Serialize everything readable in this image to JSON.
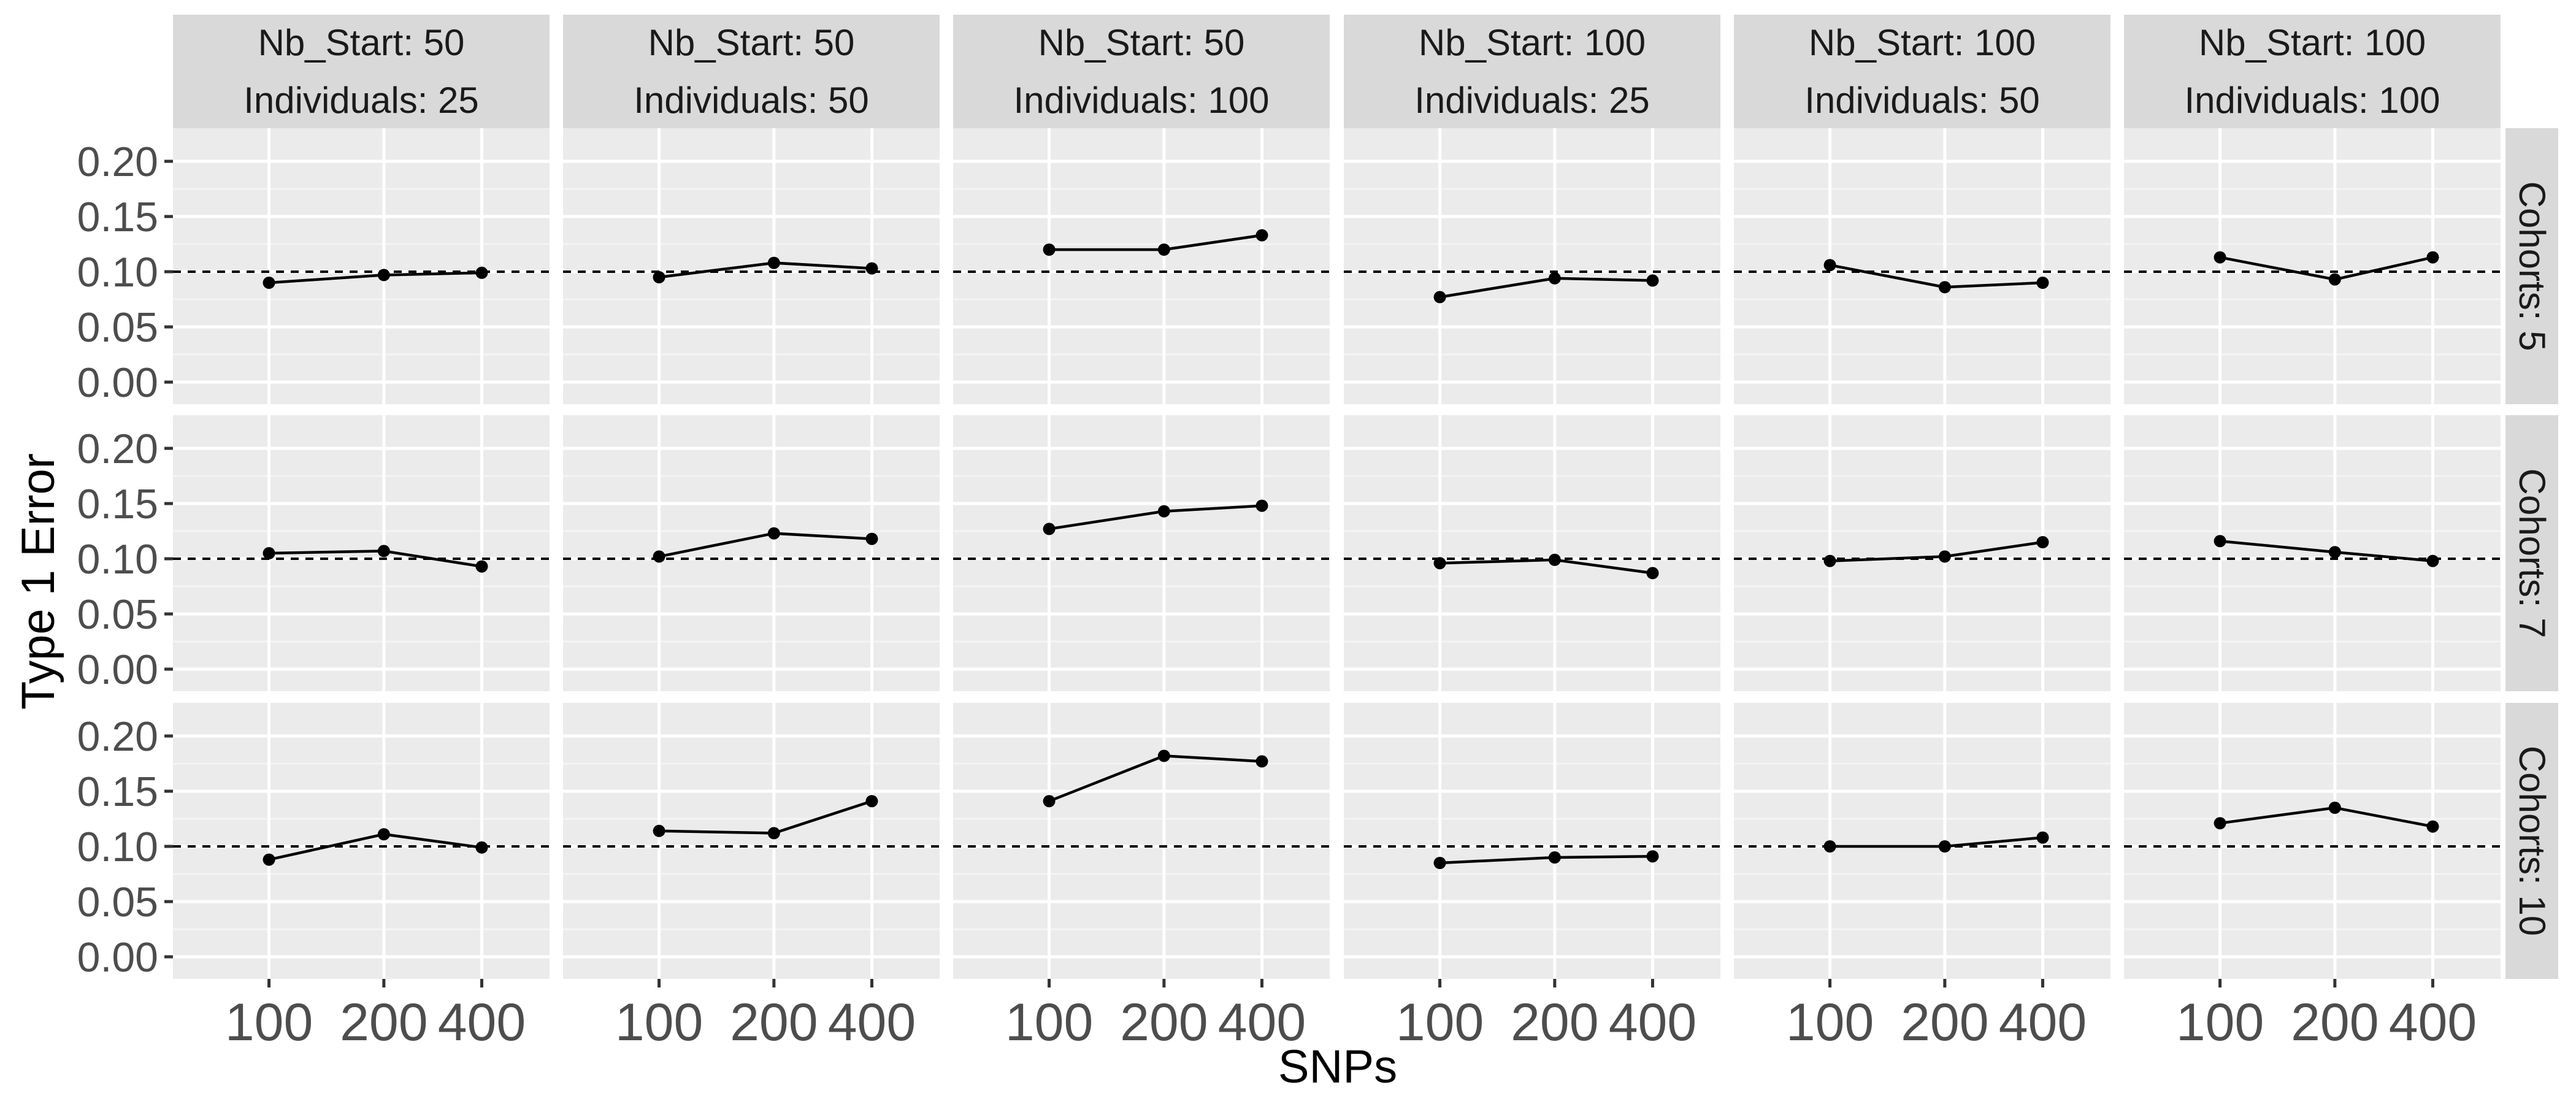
{
  "chart_data": {
    "type": "line",
    "facet_grid": true,
    "xlabel": "SNPs",
    "ylabel": "Type 1 Error",
    "x": [
      100,
      200,
      400
    ],
    "x_tick_labels": [
      "100",
      "200",
      "400"
    ],
    "ylim": [
      -0.02,
      0.23
    ],
    "y_ticks": [
      0.0,
      0.05,
      0.1,
      0.15,
      0.2
    ],
    "y_tick_labels": [
      "0.00",
      "0.05",
      "0.10",
      "0.15",
      "0.20"
    ],
    "reference_line": 0.1,
    "grid": true,
    "column_labels": [
      {
        "line1": "Nb_Start: 50",
        "line2": "Individuals: 25"
      },
      {
        "line1": "Nb_Start: 50",
        "line2": "Individuals: 50"
      },
      {
        "line1": "Nb_Start: 50",
        "line2": "Individuals: 100"
      },
      {
        "line1": "Nb_Start: 100",
        "line2": "Individuals: 25"
      },
      {
        "line1": "Nb_Start: 100",
        "line2": "Individuals: 50"
      },
      {
        "line1": "Nb_Start: 100",
        "line2": "Individuals: 100"
      }
    ],
    "row_labels": [
      "Cohorts: 5",
      "Cohorts: 7",
      "Cohorts: 10"
    ],
    "panels": [
      [
        [
          0.09,
          0.097,
          0.099
        ],
        [
          0.095,
          0.108,
          0.103
        ],
        [
          0.12,
          0.12,
          0.133
        ],
        [
          0.077,
          0.094,
          0.092
        ],
        [
          0.106,
          0.086,
          0.09
        ],
        [
          0.113,
          0.093,
          0.113
        ]
      ],
      [
        [
          0.105,
          0.107,
          0.093
        ],
        [
          0.102,
          0.123,
          0.118
        ],
        [
          0.127,
          0.143,
          0.148
        ],
        [
          0.096,
          0.099,
          0.087
        ],
        [
          0.098,
          0.102,
          0.115
        ],
        [
          0.116,
          0.106,
          0.098
        ]
      ],
      [
        [
          0.088,
          0.111,
          0.099
        ],
        [
          0.114,
          0.112,
          0.141
        ],
        [
          0.141,
          0.182,
          0.177
        ],
        [
          0.085,
          0.09,
          0.091
        ],
        [
          0.1,
          0.1,
          0.108
        ],
        [
          0.121,
          0.135,
          0.118
        ]
      ]
    ]
  }
}
